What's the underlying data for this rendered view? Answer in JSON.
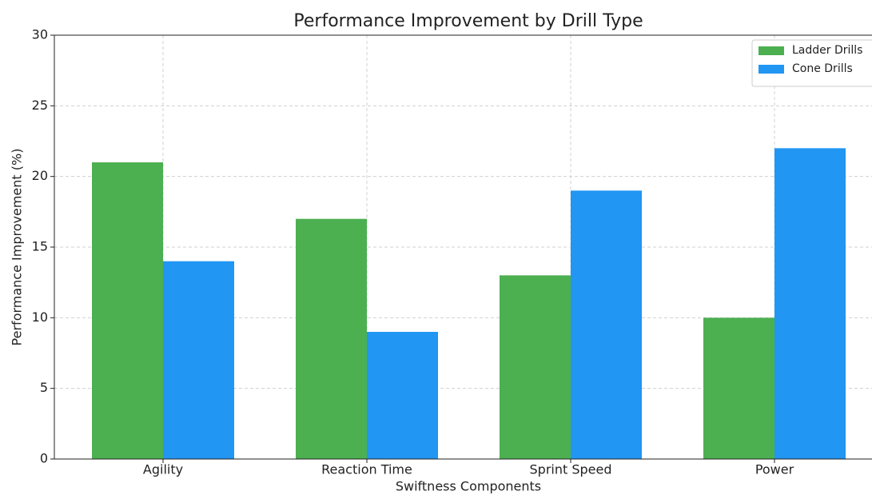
{
  "chart_data": {
    "type": "bar",
    "title": "Performance Improvement by Drill Type",
    "xlabel": "Swiftness Components",
    "ylabel": "Performance Improvement (%)",
    "categories": [
      "Agility",
      "Reaction Time",
      "Sprint Speed",
      "Power"
    ],
    "series": [
      {
        "name": "Ladder Drills",
        "color": "#4caf50",
        "values": [
          21,
          17,
          13,
          10
        ]
      },
      {
        "name": "Cone Drills",
        "color": "#2196f3",
        "values": [
          14,
          9,
          19,
          22
        ]
      }
    ],
    "ylim": [
      0,
      30
    ],
    "yticks": [
      0,
      5,
      10,
      15,
      20,
      25,
      30
    ],
    "grid": true,
    "legend": "upper right"
  }
}
